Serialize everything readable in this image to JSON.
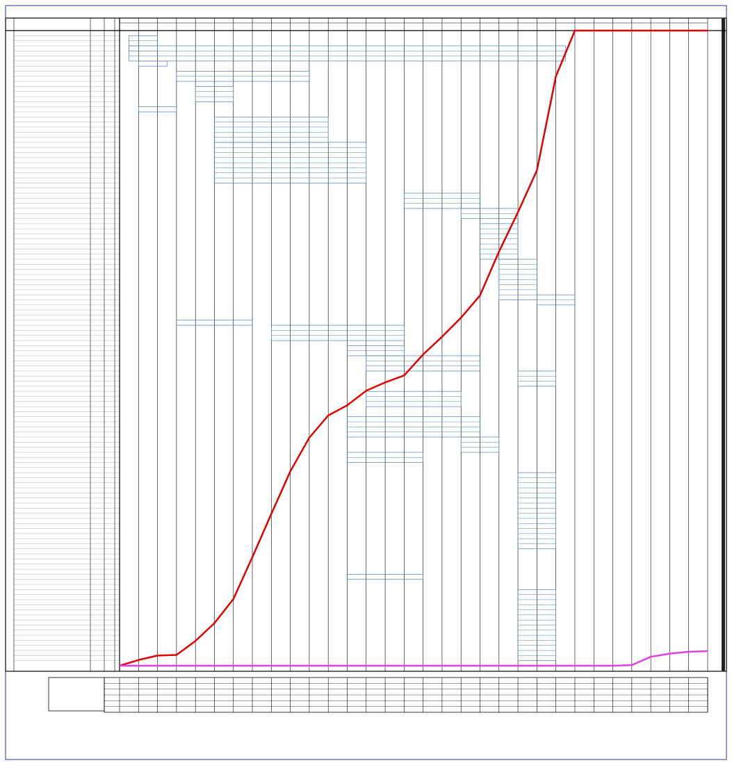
{
  "chart_data": {
    "type": "line",
    "x": [
      0,
      1,
      2,
      3,
      4,
      5,
      6,
      7,
      8,
      9,
      10,
      11,
      12,
      13,
      14,
      15,
      16,
      17,
      18,
      19,
      20,
      21,
      22,
      23,
      24,
      25,
      26,
      27,
      28,
      29,
      30,
      31
    ],
    "series": [
      {
        "color": "#e00000",
        "values": [
          0,
          0.9,
          1.6,
          1.7,
          3.9,
          6.7,
          10.5,
          17.1,
          23.9,
          30.6,
          35.9,
          39.4,
          41.0,
          43.3,
          44.6,
          45.7,
          49.0,
          51.8,
          54.8,
          58.3,
          65.2,
          71.4,
          78.0,
          92.8,
          100,
          100,
          100,
          100,
          100,
          100,
          100,
          100
        ]
      },
      {
        "color": "#e040e0",
        "values": [
          0,
          0,
          0,
          0,
          0,
          0,
          0,
          0,
          0,
          0,
          0,
          0,
          0,
          0,
          0,
          0,
          0,
          0,
          0,
          0,
          0,
          0,
          0,
          0,
          0,
          0,
          0,
          0.1,
          1.4,
          1.9,
          2.2,
          2.3
        ]
      }
    ],
    "xlim": [
      0,
      31
    ],
    "ylim": [
      0,
      100
    ],
    "tasks": [
      {
        "row": 1,
        "rows": 3,
        "start": 0.5,
        "end": 2
      },
      {
        "row": 3,
        "rows": 3,
        "start": 0.5,
        "end": 23.5
      },
      {
        "row": 6,
        "rows": 1,
        "start": 1,
        "end": 2.5
      },
      {
        "row": 8,
        "rows": 2,
        "start": 3,
        "end": 10
      },
      {
        "row": 11,
        "rows": 3,
        "start": 4,
        "end": 6
      },
      {
        "row": 15,
        "rows": 1,
        "start": 1,
        "end": 3
      },
      {
        "row": 17,
        "rows": 5,
        "start": 5,
        "end": 11
      },
      {
        "row": 22,
        "rows": 8,
        "start": 5,
        "end": 13
      },
      {
        "row": 32,
        "rows": 3,
        "start": 15,
        "end": 19
      },
      {
        "row": 35,
        "rows": 2,
        "start": 18,
        "end": 21
      },
      {
        "row": 38,
        "rows": 7,
        "start": 19,
        "end": 21
      },
      {
        "row": 45,
        "rows": 8,
        "start": 20,
        "end": 22
      },
      {
        "row": 52,
        "rows": 2,
        "start": 22,
        "end": 24
      },
      {
        "row": 57,
        "rows": 1,
        "start": 3,
        "end": 7
      },
      {
        "row": 58,
        "rows": 3,
        "start": 8,
        "end": 15
      },
      {
        "row": 62,
        "rows": 2,
        "start": 12,
        "end": 15
      },
      {
        "row": 64,
        "rows": 3,
        "start": 13,
        "end": 19
      },
      {
        "row": 67,
        "rows": 3,
        "start": 21,
        "end": 23
      },
      {
        "row": 71,
        "rows": 3,
        "start": 13,
        "end": 18
      },
      {
        "row": 76,
        "rows": 4,
        "start": 12,
        "end": 19
      },
      {
        "row": 80,
        "rows": 3,
        "start": 18,
        "end": 20
      },
      {
        "row": 83,
        "rows": 2,
        "start": 12,
        "end": 16
      },
      {
        "row": 87,
        "rows": 15,
        "start": 21,
        "end": 23
      },
      {
        "row": 107,
        "rows": 1,
        "start": 12,
        "end": 16
      },
      {
        "row": 110,
        "rows": 14,
        "start": 21,
        "end": 23
      }
    ]
  }
}
